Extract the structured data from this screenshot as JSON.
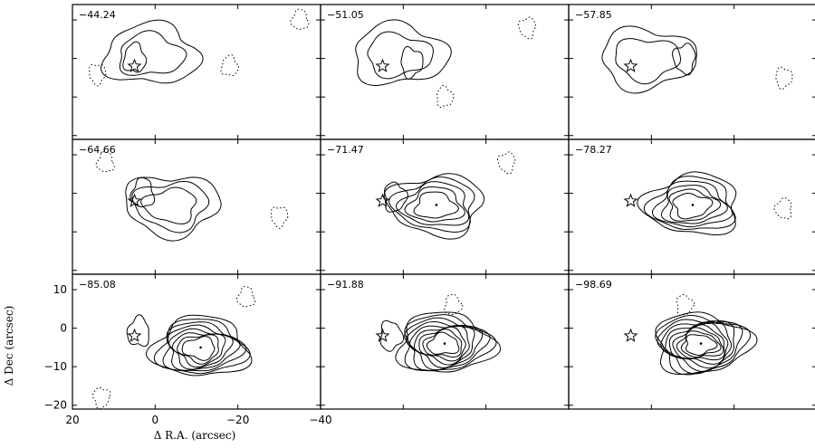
{
  "chart_data": {
    "type": "contour-channel-maps",
    "xlabel": "Δ R.A. (arcsec)",
    "ylabel": "Δ Dec (arcsec)",
    "xlim": [
      20,
      -40
    ],
    "ylim": [
      -21,
      14
    ],
    "x_ticks": [
      20,
      0,
      -20,
      -40
    ],
    "x_tick_labels": [
      "20",
      "0",
      "−20",
      "−40"
    ],
    "y_ticks": [
      10,
      0,
      -10,
      -20
    ],
    "y_tick_labels": [
      "10",
      "0",
      "−10",
      "−20"
    ],
    "star_position": [
      5,
      -2
    ],
    "panel_labels": [
      "−44.24",
      "−51.05",
      "−57.85",
      "−64.66",
      "−71.47",
      "−78.27",
      "−85.08",
      "−91.88",
      "−98.69"
    ],
    "panels": [
      {
        "label": "−44.24",
        "peak": [
          1,
          1
        ],
        "solid_levels": 2,
        "blobs": [
          [
            1,
            1
          ],
          [
            5,
            0
          ]
        ],
        "neg_blobs": [
          [
            -18,
            -2
          ],
          [
            14,
            -4
          ],
          [
            -35,
            10
          ]
        ]
      },
      {
        "label": "−51.05",
        "peak": [
          1,
          1
        ],
        "solid_levels": 2,
        "blobs": [
          [
            1,
            1
          ],
          [
            -2,
            -1
          ]
        ],
        "neg_blobs": [
          [
            -10,
            -10
          ],
          [
            -30,
            8
          ]
        ]
      },
      {
        "label": "−57.85",
        "peak": [
          1,
          0
        ],
        "solid_levels": 2,
        "blobs": [
          [
            1,
            0
          ],
          [
            -8,
            0
          ]
        ],
        "neg_blobs": [
          [
            -32,
            -5
          ]
        ]
      },
      {
        "label": "−64.66",
        "peak": [
          -4,
          -3
        ],
        "solid_levels": 3,
        "blobs": [
          [
            -4,
            -3
          ],
          [
            3,
            0
          ]
        ],
        "neg_blobs": [
          [
            -30,
            -6
          ],
          [
            12,
            8
          ]
        ]
      },
      {
        "label": "−71.47",
        "peak": [
          -8,
          -3
        ],
        "solid_levels": 5,
        "blobs": [
          [
            -8,
            -3
          ],
          [
            2,
            -1
          ]
        ],
        "neg_blobs": [
          [
            -25,
            8
          ]
        ]
      },
      {
        "label": "−78.27",
        "peak": [
          -10,
          -3
        ],
        "solid_levels": 6,
        "blobs": [
          [
            -10,
            -3
          ]
        ],
        "neg_blobs": [
          [
            -32,
            -4
          ]
        ]
      },
      {
        "label": "−85.08",
        "peak": [
          -11,
          -5
        ],
        "solid_levels": 8,
        "blobs": [
          [
            -11,
            -5
          ],
          [
            4,
            -1
          ]
        ],
        "neg_blobs": [
          [
            -22,
            8
          ],
          [
            13,
            -18
          ]
        ]
      },
      {
        "label": "−91.88",
        "peak": [
          -10,
          -4
        ],
        "solid_levels": 9,
        "blobs": [
          [
            -10,
            -4
          ],
          [
            3,
            -2
          ]
        ],
        "neg_blobs": [
          [
            -12,
            6
          ]
        ]
      },
      {
        "label": "−98.69",
        "peak": [
          -12,
          -4
        ],
        "solid_levels": 10,
        "blobs": [
          [
            -12,
            -4
          ]
        ],
        "neg_blobs": [
          [
            -8,
            6
          ]
        ]
      }
    ]
  }
}
